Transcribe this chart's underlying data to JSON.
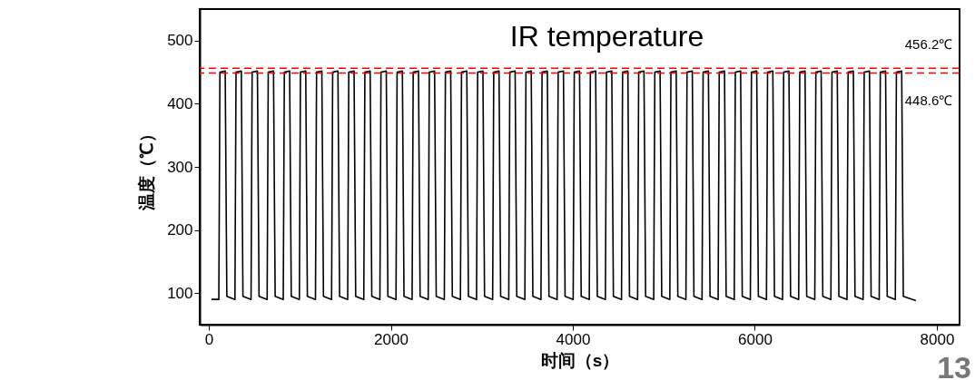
{
  "chart_data": {
    "type": "line",
    "title": "IR temperature",
    "xlabel": "时间（s）",
    "ylabel": "温度（℃）",
    "xlim": [
      -100,
      8250
    ],
    "xticks": [
      0,
      2000,
      4000,
      6000,
      8000
    ],
    "ylim": [
      50,
      550
    ],
    "yticks": [
      100,
      200,
      300,
      400,
      500
    ],
    "grid": false,
    "line_style": "solid",
    "marker": "none",
    "x": [
      30,
      110,
      122,
      180,
      198,
      287,
      299,
      357,
      375,
      464,
      476,
      534,
      552,
      641,
      653,
      711,
      729,
      818,
      830,
      888,
      906,
      995,
      1007,
      1065,
      1083,
      1172,
      1184,
      1242,
      1260,
      1349,
      1361,
      1419,
      1437,
      1526,
      1538,
      1596,
      1614,
      1703,
      1715,
      1773,
      1791,
      1880,
      1892,
      1950,
      1968,
      2057,
      2069,
      2127,
      2145,
      2234,
      2246,
      2304,
      2322,
      2411,
      2423,
      2481,
      2499,
      2588,
      2600,
      2658,
      2676,
      2765,
      2777,
      2835,
      2853,
      2942,
      2954,
      3012,
      3030,
      3119,
      3131,
      3189,
      3207,
      3296,
      3308,
      3366,
      3384,
      3473,
      3485,
      3543,
      3561,
      3650,
      3662,
      3720,
      3738,
      3827,
      3839,
      3897,
      3915,
      4004,
      4016,
      4074,
      4092,
      4181,
      4193,
      4251,
      4269,
      4358,
      4370,
      4428,
      4446,
      4535,
      4547,
      4605,
      4623,
      4712,
      4724,
      4782,
      4800,
      4889,
      4901,
      4959,
      4977,
      5066,
      5078,
      5136,
      5154,
      5243,
      5255,
      5313,
      5331,
      5420,
      5432,
      5490,
      5508,
      5597,
      5609,
      5667,
      5685,
      5774,
      5786,
      5844,
      5862,
      5951,
      5963,
      6021,
      6039,
      6128,
      6140,
      6198,
      6216,
      6305,
      6317,
      6375,
      6393,
      6482,
      6494,
      6552,
      6570,
      6659,
      6671,
      6729,
      6747,
      6836,
      6848,
      6906,
      6924,
      7013,
      7025,
      7083,
      7101,
      7190,
      7202,
      7260,
      7278,
      7367,
      7379,
      7437,
      7455,
      7544,
      7556,
      7614,
      7632,
      7770
    ],
    "series": [
      {
        "color": "#000000",
        "values": [
          90,
          90,
          450,
          452,
          95,
          90,
          450,
          452,
          95,
          90,
          450,
          452,
          95,
          90,
          450,
          452,
          95,
          90,
          450,
          452,
          95,
          90,
          450,
          452,
          95,
          90,
          450,
          452,
          95,
          90,
          450,
          452,
          95,
          90,
          450,
          452,
          95,
          90,
          450,
          452,
          95,
          90,
          450,
          452,
          95,
          90,
          450,
          452,
          95,
          90,
          450,
          452,
          95,
          90,
          450,
          452,
          95,
          90,
          450,
          452,
          95,
          90,
          450,
          452,
          95,
          90,
          450,
          452,
          95,
          90,
          450,
          452,
          95,
          90,
          450,
          452,
          95,
          90,
          450,
          452,
          95,
          90,
          450,
          452,
          95,
          90,
          450,
          452,
          95,
          90,
          450,
          452,
          95,
          90,
          450,
          452,
          95,
          90,
          450,
          452,
          95,
          90,
          450,
          452,
          95,
          90,
          450,
          452,
          95,
          90,
          450,
          452,
          95,
          90,
          450,
          452,
          95,
          90,
          450,
          452,
          95,
          90,
          450,
          452,
          95,
          90,
          450,
          452,
          95,
          90,
          450,
          452,
          95,
          90,
          450,
          452,
          95,
          90,
          450,
          452,
          95,
          90,
          450,
          452,
          95,
          90,
          450,
          452,
          95,
          90,
          450,
          452,
          95,
          90,
          450,
          452,
          95,
          90,
          450,
          452,
          95,
          90,
          450,
          452,
          95,
          90,
          450,
          452,
          95,
          90,
          450,
          452,
          95,
          88
        ]
      }
    ],
    "ref_lines": [
      {
        "axis": "y",
        "value": 456.2,
        "label": "456.2℃",
        "color": "#ff0000",
        "line_style": "dashed"
      },
      {
        "axis": "y",
        "value": 448.6,
        "label": "448.6℃",
        "color": "#ff0000",
        "line_style": "dashed"
      }
    ],
    "annotations": [
      "13"
    ]
  }
}
